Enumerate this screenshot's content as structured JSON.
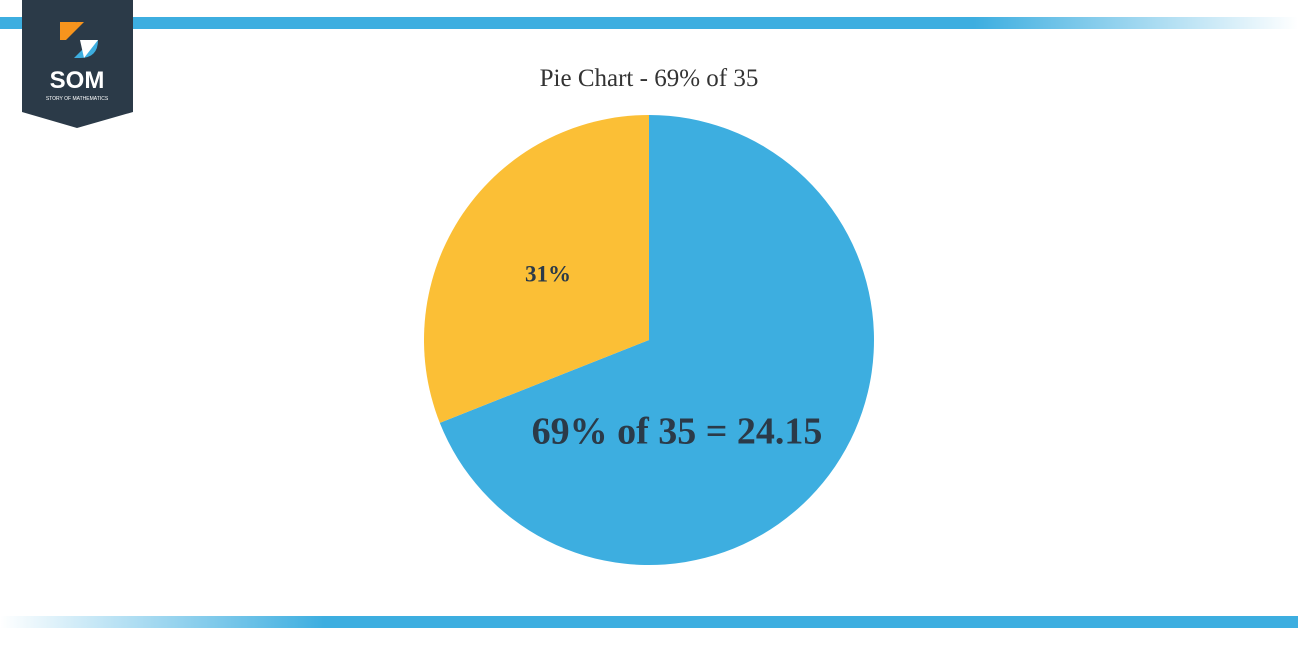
{
  "logo": {
    "text": "SOM",
    "subtext": "STORY OF MATHEMATICS"
  },
  "chart_data": {
    "type": "pie",
    "title": "Pie Chart - 69% of 35",
    "values": [
      69,
      31
    ],
    "value_labels": [
      "69% of 35 = 24.15",
      "31%"
    ],
    "colors": [
      "#3daee0",
      "#fbbf36"
    ]
  }
}
